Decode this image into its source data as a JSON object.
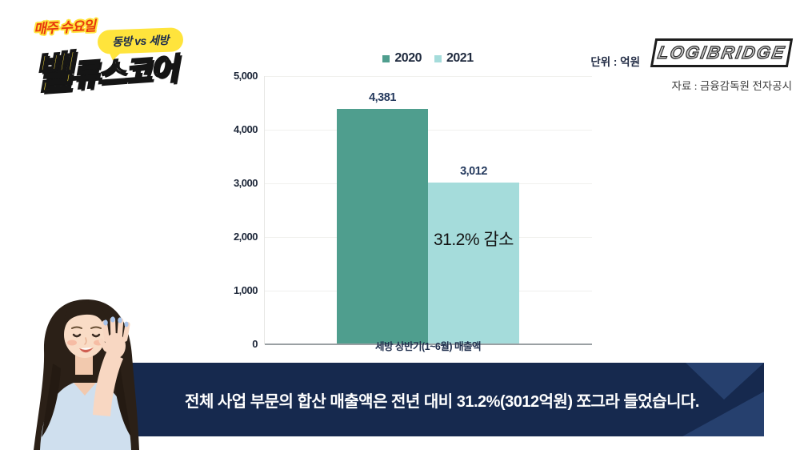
{
  "header": {
    "schedule_label": "매주 수요일",
    "matchup_badge": "동방 vs 세방",
    "show_logo_first": "밸",
    "show_logo_rest": "류스코어",
    "brand_logo": "LOGIBRIDGE",
    "source_note": "자료 : 금융감독원 전자공시"
  },
  "chart": {
    "unit_label": "단위 : 억원",
    "legend": [
      {
        "label": "2020",
        "color": "#4f9e8e"
      },
      {
        "label": "2021",
        "color": "#a5dcdb"
      }
    ],
    "y_ticks": [
      "5,000",
      "4,000",
      "3,000",
      "2,000",
      "1,000",
      "0"
    ],
    "bars": [
      {
        "series": "2020",
        "value_label": "4,381"
      },
      {
        "series": "2021",
        "value_label": "3,012"
      }
    ],
    "annotation": "31.2% 감소",
    "x_axis_label": "세방 상반기(1~6월) 매출액"
  },
  "chart_data": {
    "type": "bar",
    "categories": [
      "세방 상반기(1~6월) 매출액"
    ],
    "series": [
      {
        "name": "2020",
        "values": [
          4381
        ],
        "color": "#4f9e8e"
      },
      {
        "name": "2021",
        "values": [
          3012
        ],
        "color": "#a5dcdb"
      }
    ],
    "unit": "억원",
    "ylim": [
      0,
      5000
    ],
    "yticks": [
      0,
      1000,
      2000,
      3000,
      4000,
      5000
    ],
    "grid": true,
    "legend_position": "top-center",
    "annotations": [
      {
        "text": "31.2% 감소",
        "target": "2021"
      }
    ]
  },
  "banner": {
    "text": "전체 사업 부문의 합산 매출액은 전년 대비 31.2%(3012억원) 쪼그라 들었습니다.",
    "background": "#16294e",
    "chevron_color": "#26406e"
  }
}
